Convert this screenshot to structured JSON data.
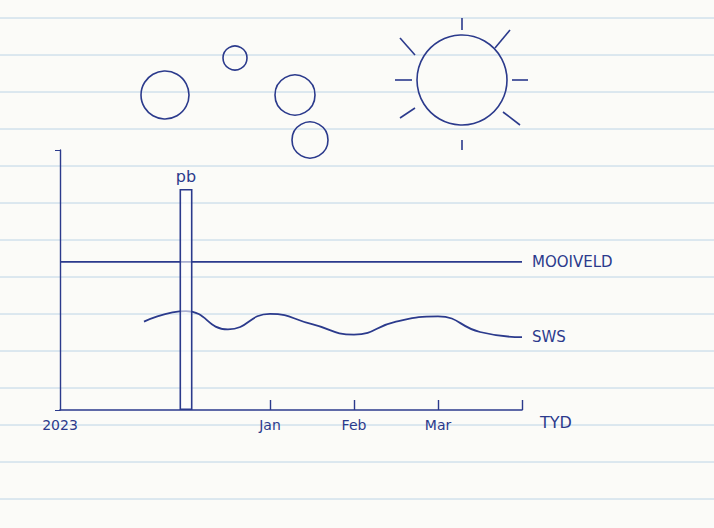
{
  "chart_data": {
    "type": "line",
    "categories": [
      "2023",
      null,
      null,
      null,
      null,
      "Jan",
      null,
      "Feb",
      null,
      "Mar",
      null,
      null
    ],
    "x_label": "TYD",
    "ylim": [
      0,
      10
    ],
    "yticks": [
      0,
      10
    ],
    "tick_labels": "x",
    "grid": false,
    "series": [
      {
        "name": "pb",
        "type": "bar",
        "color": "#2b3a8c",
        "values": [
          null,
          null,
          null,
          8.5,
          null,
          null,
          null,
          null,
          null,
          null,
          null,
          null
        ]
      },
      {
        "name": "MOOIVELD",
        "type": "line",
        "color": "#2b3a8c",
        "line_style": "solid",
        "values": [
          5.7,
          5.7,
          5.7,
          5.7,
          5.7,
          5.7,
          5.7,
          5.7,
          5.7,
          5.7,
          5.7,
          5.7
        ]
      },
      {
        "name": "SWS",
        "type": "line",
        "color": "#2b3a8c",
        "line_style": "solid",
        "values": [
          null,
          null,
          3.4,
          3.8,
          3.1,
          3.7,
          3.3,
          2.9,
          3.4,
          3.6,
          3.0,
          2.8
        ]
      }
    ]
  }
}
